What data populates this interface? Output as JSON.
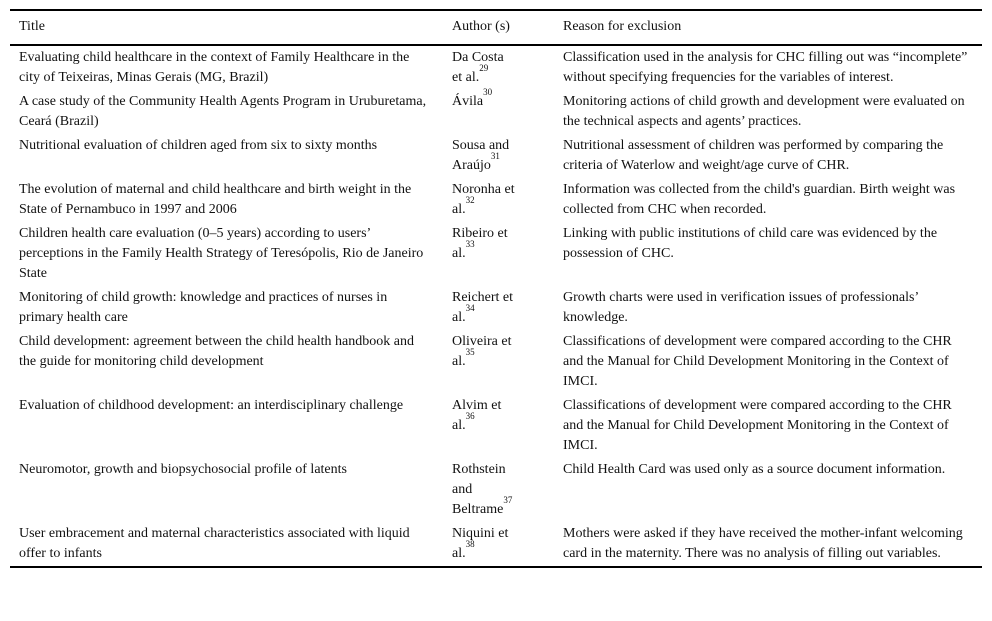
{
  "page": {
    "background": "#ffffff",
    "text_color": "#111111",
    "rule_color": "#000000"
  },
  "table": {
    "headers": {
      "title": "Title",
      "authors": "Author (s)",
      "reason": "Reason for exclusion"
    },
    "rows": [
      {
        "title": "Evaluating child healthcare in the context of Family Healthcare in the city of Teixeiras, Minas Gerais (MG, Brazil)",
        "author_lines": [
          {
            "text": "Da Costa"
          },
          {
            "text": "et al.",
            "sup": "29"
          }
        ],
        "reason": "Classification used in the analysis for CHC filling out was “incomplete” without specifying frequencies for the variables of interest."
      },
      {
        "title": "A case study of the Community Health Agents Program in Uruburetama, Ceará (Brazil)",
        "author_lines": [
          {
            "text": "Ávila",
            "sup": "30"
          }
        ],
        "reason": "Monitoring actions of child growth and development were evaluated on the technical aspects and agents’ practices."
      },
      {
        "title": "Nutritional evaluation of children aged from six to sixty months",
        "author_lines": [
          {
            "text": "Sousa and"
          },
          {
            "text": "Araújo",
            "sup": "31"
          }
        ],
        "reason": "Nutritional assessment of children was performed by comparing the criteria of Waterlow and weight/age curve of CHR."
      },
      {
        "title": "The evolution of maternal and child healthcare and birth weight in the State of Pernambuco in 1997 and 2006",
        "author_lines": [
          {
            "text": "Noronha et"
          },
          {
            "text": "al.",
            "sup": "32"
          }
        ],
        "reason": "Information was collected from the child's guardian. Birth weight was collected from CHC when recorded."
      },
      {
        "title": "Children health care evaluation (0–5 years) according to users’ perceptions in the Family Health Strategy of Teresópolis, Rio de Janeiro State",
        "author_lines": [
          {
            "text": "Ribeiro et"
          },
          {
            "text": "al.",
            "sup": "33"
          }
        ],
        "reason": "Linking with public institutions of child care was evidenced by the possession of CHC."
      },
      {
        "title": "Monitoring of child growth: knowledge and practices of nurses in primary health care",
        "author_lines": [
          {
            "text": "Reichert et"
          },
          {
            "text": "al.",
            "sup": "34"
          }
        ],
        "reason": "Growth charts were used in verification issues of professionals’ knowledge."
      },
      {
        "title": "Child development: agreement between the child health handbook and the guide for monitoring child development",
        "author_lines": [
          {
            "text": "Oliveira et"
          },
          {
            "text": "al.",
            "sup": "35"
          }
        ],
        "reason": "Classifications of development were compared according to the CHR and the Manual for Child Development Monitoring in the Context of IMCI."
      },
      {
        "title": "Evaluation of childhood development: an interdisciplinary challenge",
        "author_lines": [
          {
            "text": "Alvim et"
          },
          {
            "text": "al.",
            "sup": "36"
          }
        ],
        "reason": "Classifications of development were compared according to the CHR and the Manual for Child Development Monitoring in the Context of IMCI."
      },
      {
        "title": "Neuromotor, growth and biopsychosocial profile of latents",
        "author_lines": [
          {
            "text": "Rothstein"
          },
          {
            "text": "and"
          },
          {
            "text": "Beltrame",
            "sup": "37"
          }
        ],
        "reason": "Child Health Card was used only as a source document information."
      },
      {
        "title": "User embracement and maternal characteristics associated with liquid offer to infants",
        "author_lines": [
          {
            "text": "Niquini et"
          },
          {
            "text": "al.",
            "sup": "38"
          }
        ],
        "reason": "Mothers were asked if they have received the mother-infant welcoming card in the maternity. There was no analysis of filling out variables."
      }
    ]
  }
}
